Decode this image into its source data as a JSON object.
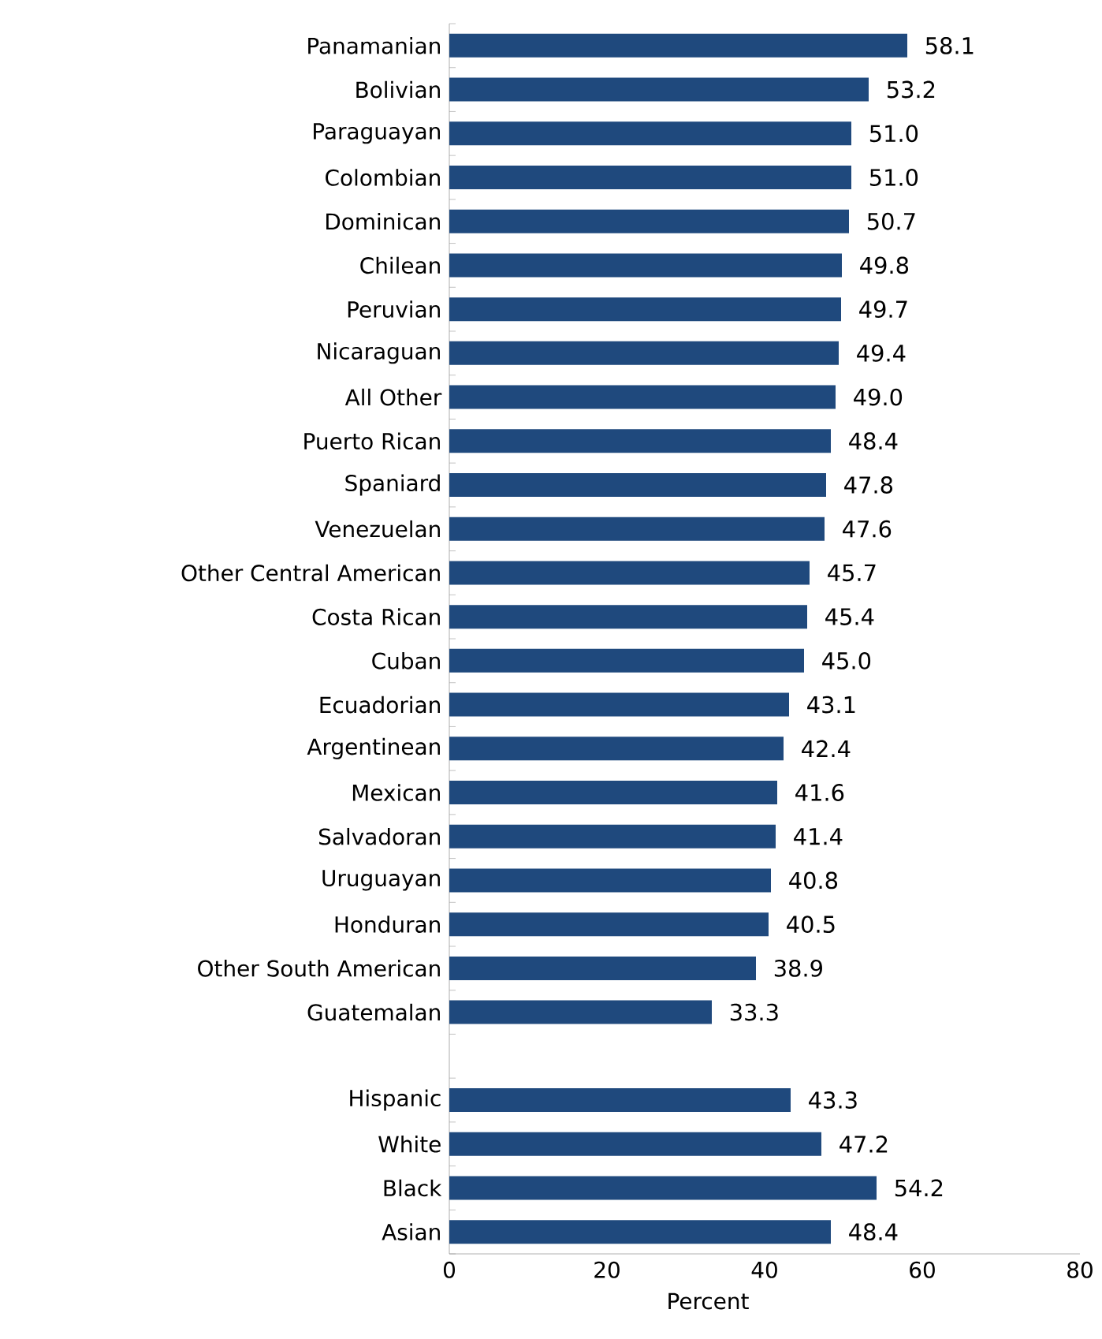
{
  "chart_data": {
    "type": "bar",
    "orientation": "horizontal",
    "xlabel": "Percent",
    "categories": [
      "Panamanian",
      "Bolivian",
      "Paraguayan",
      "Colombian",
      "Dominican",
      "Chilean",
      "Peruvian",
      "Nicaraguan",
      "All Other",
      "Puerto Rican",
      "Spaniard",
      "Venezuelan",
      "Other Central American",
      "Costa Rican",
      "Cuban",
      "Ecuadorian",
      "Argentinean",
      "Mexican",
      "Salvadoran",
      "Uruguayan",
      "Honduran",
      "Other South American",
      "Guatemalan",
      null,
      "Hispanic",
      "White",
      "Black",
      "Asian"
    ],
    "values": [
      58.1,
      53.2,
      51.0,
      51.0,
      50.7,
      49.8,
      49.7,
      49.4,
      49.0,
      48.4,
      47.8,
      47.6,
      45.7,
      45.4,
      45.0,
      43.1,
      42.4,
      41.6,
      41.4,
      40.8,
      40.5,
      38.9,
      33.3,
      null,
      43.3,
      47.2,
      54.2,
      48.4
    ],
    "value_labels": [
      "58.1",
      "53.2",
      "51.0",
      "51.0",
      "50.7",
      "49.8",
      "49.7",
      "49.4",
      "49.0",
      "48.4",
      "47.8",
      "47.6",
      "45.7",
      "45.4",
      "45.0",
      "43.1",
      "42.4",
      "41.6",
      "41.4",
      "40.8",
      "40.5",
      "38.9",
      "33.3",
      null,
      "43.3",
      "47.2",
      "54.2",
      "48.4"
    ],
    "color": "#1f497d",
    "xlim": [
      0,
      80
    ],
    "xticks": [
      0,
      20,
      40,
      60,
      80
    ]
  }
}
